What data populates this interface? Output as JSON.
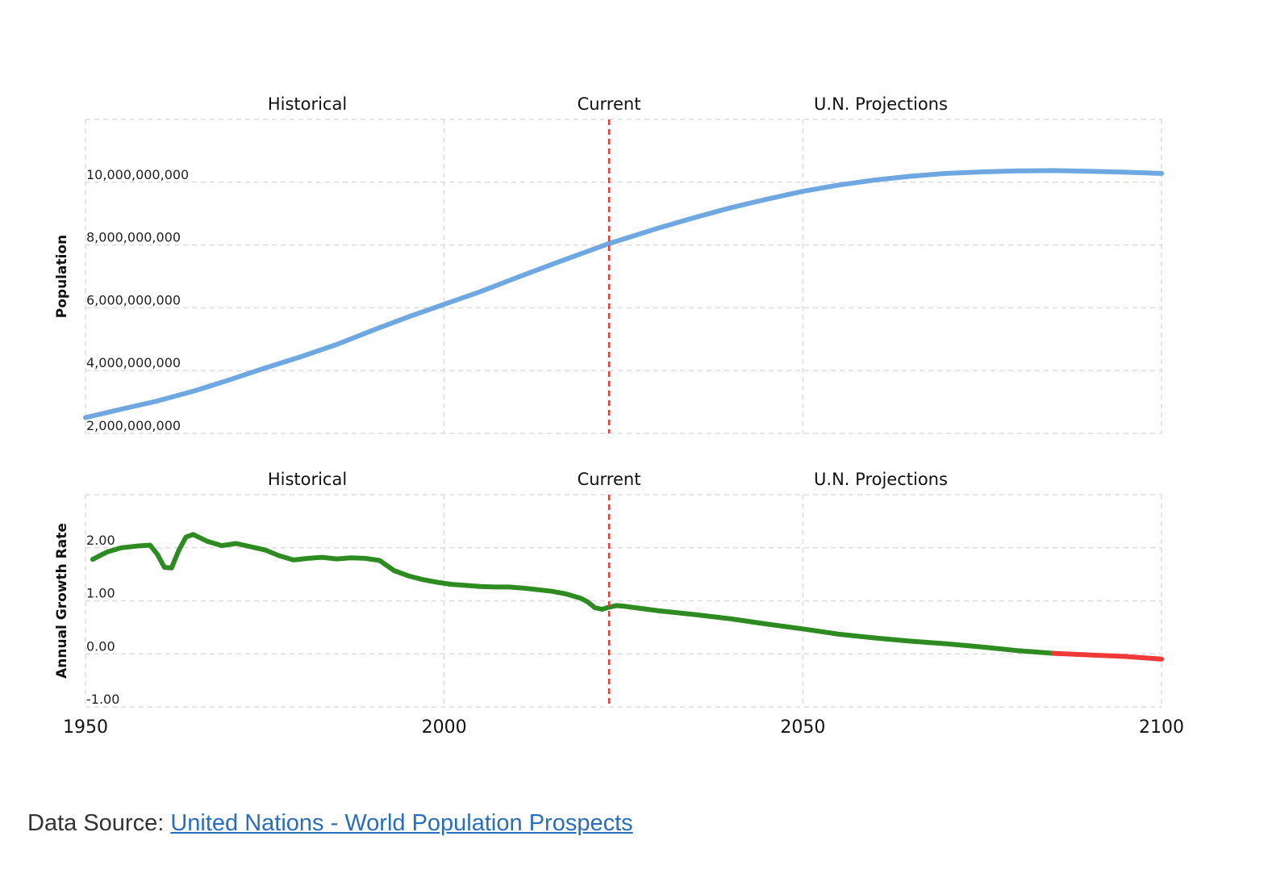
{
  "colors": {
    "population_line": "#6fa8e0",
    "growth_positive": "#2e8b22",
    "growth_negative": "#f03a3a",
    "current_marker": "#e03b3b",
    "grid": "#dddddd"
  },
  "chart_data": [
    {
      "type": "line",
      "region_labels": [
        "Historical",
        "Current",
        "U.N. Projections"
      ],
      "current_year": 2023,
      "ylabel": "Population",
      "xlim": [
        1950,
        2100
      ],
      "ylim": [
        2000000000,
        12000000000
      ],
      "yticks": [
        2000000000,
        4000000000,
        6000000000,
        8000000000,
        10000000000
      ],
      "ytick_labels": [
        "2,000,000,000",
        "4,000,000,000",
        "6,000,000,000",
        "8,000,000,000",
        "10,000,000,000"
      ],
      "grid": true,
      "series": [
        {
          "x": [
            1950,
            1955,
            1960,
            1965,
            1970,
            1975,
            1980,
            1985,
            1990,
            1995,
            2000,
            2005,
            2010,
            2015,
            2020,
            2023,
            2025,
            2030,
            2035,
            2040,
            2045,
            2050,
            2055,
            2060,
            2065,
            2070,
            2075,
            2080,
            2085,
            2090,
            2095,
            2100
          ],
          "y": [
            2500000000,
            2770000000,
            3030000000,
            3340000000,
            3700000000,
            4080000000,
            4440000000,
            4830000000,
            5280000000,
            5710000000,
            6110000000,
            6510000000,
            6950000000,
            7380000000,
            7800000000,
            8050000000,
            8190000000,
            8550000000,
            8880000000,
            9190000000,
            9460000000,
            9710000000,
            9910000000,
            10070000000,
            10190000000,
            10280000000,
            10330000000,
            10360000000,
            10370000000,
            10350000000,
            10320000000,
            10280000000
          ]
        }
      ]
    },
    {
      "type": "line",
      "region_labels": [
        "Historical",
        "Current",
        "U.N. Projections"
      ],
      "current_year": 2023,
      "ylabel": "Annual Growth Rate",
      "xlim": [
        1950,
        2100
      ],
      "ylim": [
        -1,
        3
      ],
      "yticks": [
        -1,
        0,
        1,
        2
      ],
      "ytick_labels": [
        "-1.00",
        "0.00",
        "1.00",
        "2.00"
      ],
      "xticks": [
        1950,
        2000,
        2050,
        2100
      ],
      "xtick_labels": [
        "1950",
        "2000",
        "2050",
        "2100"
      ],
      "grid": true,
      "series": [
        {
          "x": [
            1951,
            1953,
            1955,
            1957,
            1959,
            1960,
            1961,
            1962,
            1963,
            1964,
            1965,
            1967,
            1969,
            1971,
            1973,
            1975,
            1977,
            1979,
            1981,
            1983,
            1985,
            1987,
            1989,
            1991,
            1993,
            1995,
            1997,
            1999,
            2001,
            2003,
            2005,
            2007,
            2009,
            2011,
            2013,
            2015,
            2017,
            2019,
            2020,
            2021,
            2022,
            2023,
            2024,
            2025,
            2030,
            2035,
            2040,
            2045,
            2050,
            2055,
            2060,
            2065,
            2070,
            2075,
            2080,
            2085,
            2090,
            2095,
            2100
          ],
          "y": [
            1.78,
            1.92,
            2.0,
            2.03,
            2.05,
            1.88,
            1.63,
            1.62,
            1.95,
            2.2,
            2.25,
            2.12,
            2.04,
            2.08,
            2.02,
            1.96,
            1.85,
            1.77,
            1.8,
            1.82,
            1.79,
            1.81,
            1.8,
            1.76,
            1.57,
            1.47,
            1.4,
            1.35,
            1.31,
            1.29,
            1.27,
            1.26,
            1.26,
            1.24,
            1.21,
            1.18,
            1.13,
            1.05,
            0.98,
            0.87,
            0.84,
            0.88,
            0.91,
            0.9,
            0.81,
            0.74,
            0.66,
            0.56,
            0.47,
            0.37,
            0.3,
            0.24,
            0.19,
            0.13,
            0.06,
            0.01,
            -0.02,
            -0.05,
            -0.1
          ]
        }
      ]
    }
  ],
  "footer": {
    "prefix": "Data Source: ",
    "link_text": "United Nations - World Population Prospects"
  }
}
